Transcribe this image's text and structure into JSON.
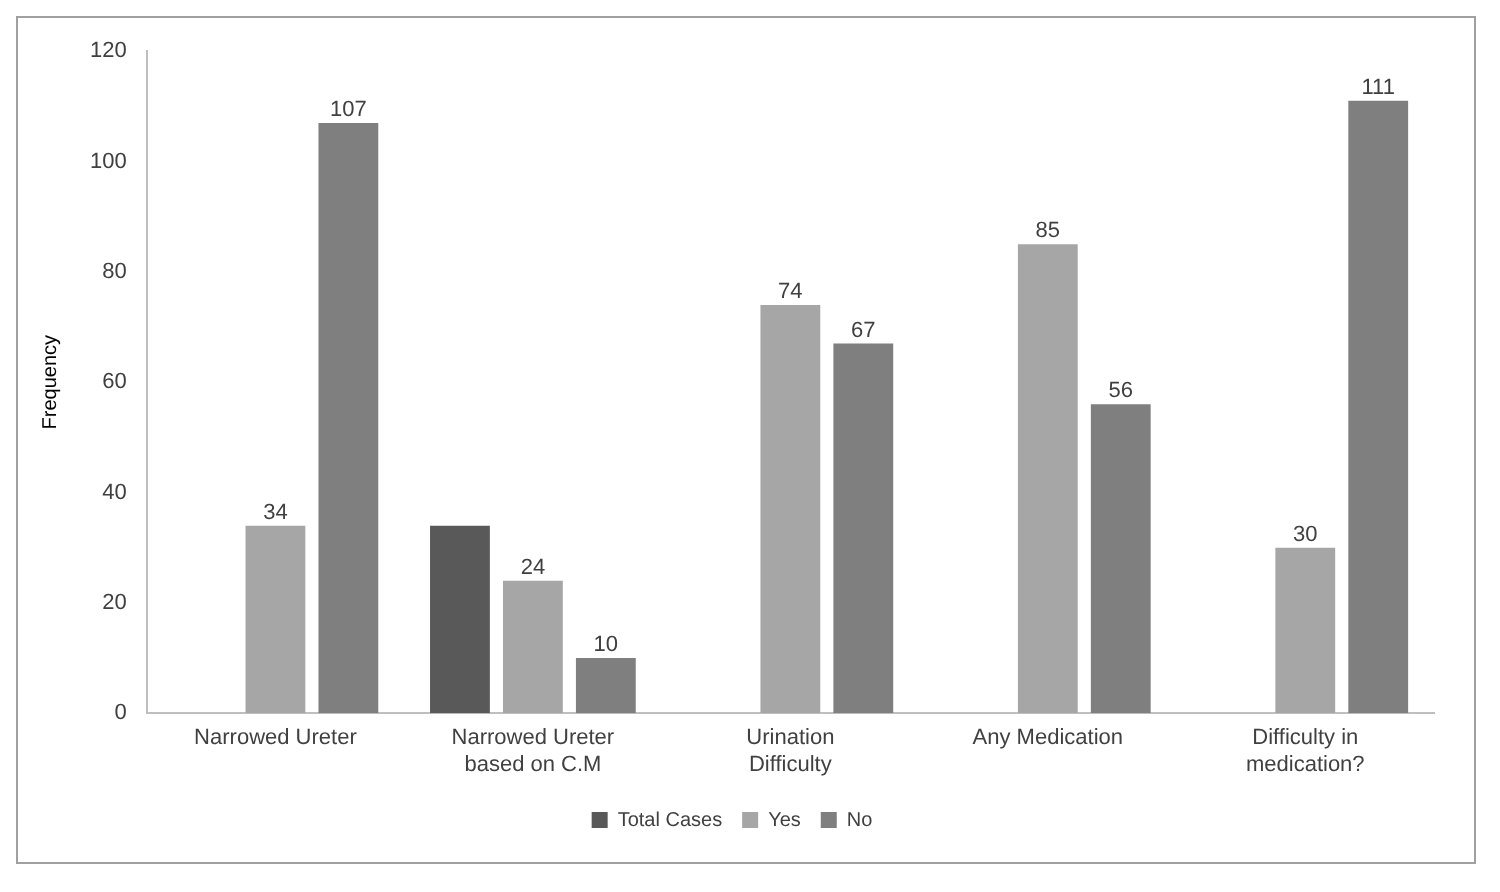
{
  "chart_data": {
    "type": "bar",
    "ylabel": "Frequency",
    "categories": [
      "Narrowed Ureter",
      "Narrowed Ureter based on C.M",
      "Urination Difficulty",
      "Any Medication",
      "Difficulty in medication?"
    ],
    "series": [
      {
        "name": "Total Cases",
        "color": "#595959",
        "values": [
          null,
          34,
          null,
          null,
          null
        ]
      },
      {
        "name": "Yes",
        "color": "#a6a6a6",
        "values": [
          34,
          24,
          74,
          85,
          30
        ],
        "value_labels": [
          "34",
          "24",
          "74",
          "85",
          "30"
        ]
      },
      {
        "name": "No",
        "color": "#7f7f7f",
        "values": [
          107,
          10,
          67,
          56,
          111
        ],
        "value_labels": [
          "107",
          "10",
          "67",
          "56",
          "111"
        ]
      }
    ],
    "ylim": [
      0,
      120
    ],
    "yticks": [
      0,
      20,
      40,
      60,
      80,
      100,
      120
    ],
    "grid": false,
    "legend": "bottom"
  }
}
